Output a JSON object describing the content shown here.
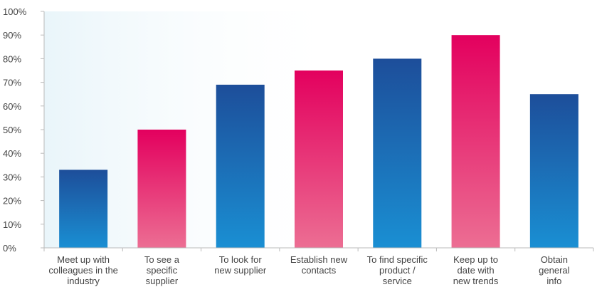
{
  "chart_data": {
    "type": "bar",
    "title": "",
    "xlabel": "",
    "ylabel": "",
    "ylim": [
      0,
      100
    ],
    "y_ticks": [
      "0%",
      "10%",
      "20%",
      "30%",
      "40%",
      "50%",
      "60%",
      "70%",
      "80%",
      "90%",
      "100%"
    ],
    "categories": [
      [
        "Meet up with",
        "colleagues in the",
        "industry"
      ],
      [
        "To see a",
        "specific",
        "supplier"
      ],
      [
        "To look for",
        "new supplier"
      ],
      [
        "Establish new",
        "contacts"
      ],
      [
        "To find specific",
        "product /",
        "service"
      ],
      [
        "Keep up to",
        "date with",
        "new trends"
      ],
      [
        "Obtain",
        "general",
        "info"
      ]
    ],
    "values": [
      33,
      50,
      69,
      75,
      80,
      90,
      65
    ],
    "bar_styles": [
      "blue",
      "pink",
      "blue",
      "pink",
      "blue",
      "pink",
      "blue"
    ],
    "colors": {
      "blue_top": "#1d4e9a",
      "blue_bottom": "#1a8fd3",
      "pink_top": "#e3005e",
      "pink_bottom": "#ec6e93",
      "background_tint": "#e9f5fa",
      "axis": "#bbbbbb"
    },
    "grid": false,
    "legend": "none"
  }
}
